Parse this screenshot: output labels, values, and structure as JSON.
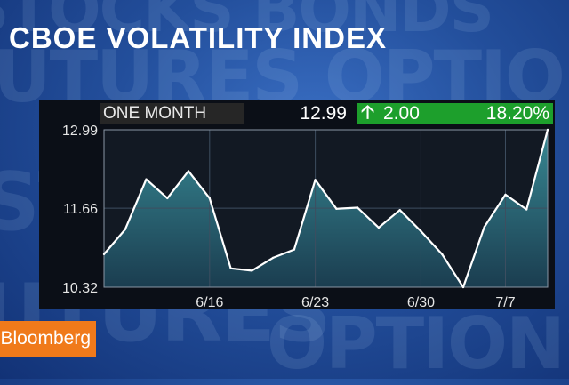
{
  "title": "CBOE VOLATILITY INDEX",
  "header": {
    "period": "ONE MONTH",
    "last_value": "12.99",
    "change": "2.00",
    "change_pct": "18.20%",
    "change_direction": "up-arrow-icon"
  },
  "logo": "Bloomberg",
  "colors": {
    "positive": "#1d9f2c",
    "line": "#ffffff",
    "logo": "#f07a1a"
  },
  "chart_data": {
    "type": "area",
    "title": "CBOE VOLATILITY INDEX",
    "xlabel": "",
    "ylabel": "",
    "ylim": [
      10.32,
      12.99
    ],
    "yticks": [
      "12.99",
      "11.66",
      "10.32"
    ],
    "xticks": [
      "6/16",
      "6/23",
      "6/30",
      "7/7"
    ],
    "grid": true,
    "series": [
      {
        "values": [
          10.88,
          11.3,
          12.15,
          11.83,
          12.29,
          11.83,
          10.64,
          10.6,
          10.82,
          10.96,
          12.14,
          11.65,
          11.67,
          11.33,
          11.63,
          11.27,
          10.88,
          10.32,
          11.34,
          11.89,
          11.64,
          12.99
        ]
      }
    ]
  }
}
